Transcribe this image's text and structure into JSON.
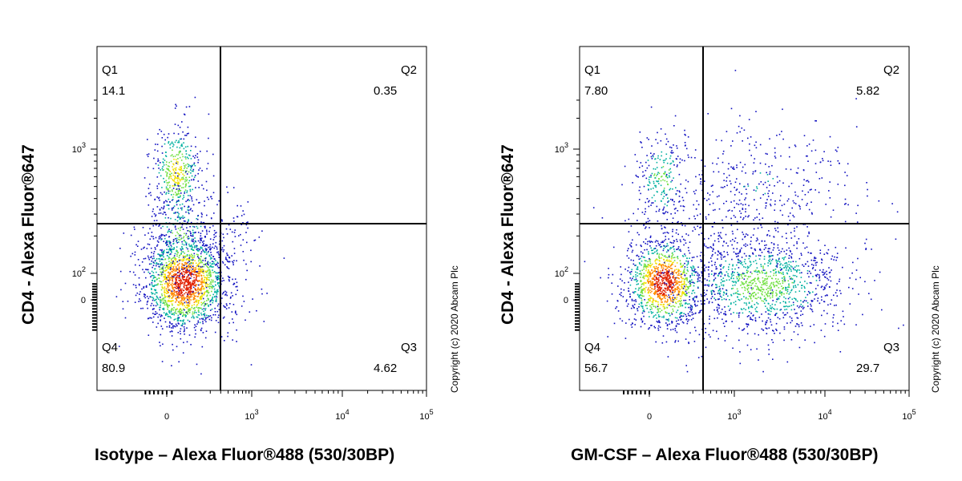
{
  "chart_data": [
    {
      "type": "scatter",
      "subtype": "flow-cytometry-density-dot-plot",
      "xlabel": "Isotype – Alexa Fluor®488 (530/30BP)",
      "ylabel": "CD4 - Alexa Fluor®647",
      "x_scale": "biexponential",
      "y_scale": "biexponential",
      "x_ticks": [
        "0",
        "10^3",
        "10^4",
        "10^5"
      ],
      "y_ticks": [
        "0",
        "10^2",
        "10^3"
      ],
      "x_gate": 500,
      "y_gate": 300,
      "quadrants": [
        {
          "name": "Q1",
          "percent": "14.1"
        },
        {
          "name": "Q2",
          "percent": "0.35"
        },
        {
          "name": "Q3",
          "percent": "4.62"
        },
        {
          "name": "Q4",
          "percent": "80.9"
        }
      ],
      "copyright": "Copyright (c) 2020 Abcam Plc"
    },
    {
      "type": "scatter",
      "subtype": "flow-cytometry-density-dot-plot",
      "xlabel": "GM-CSF – Alexa Fluor®488 (530/30BP)",
      "ylabel": "CD4 - Alexa Fluor®647",
      "x_scale": "biexponential",
      "y_scale": "biexponential",
      "x_ticks": [
        "0",
        "10^3",
        "10^4",
        "10^5"
      ],
      "y_ticks": [
        "0",
        "10^2",
        "10^3"
      ],
      "x_gate": 500,
      "y_gate": 300,
      "quadrants": [
        {
          "name": "Q1",
          "percent": "7.80"
        },
        {
          "name": "Q2",
          "percent": "5.82"
        },
        {
          "name": "Q3",
          "percent": "29.7"
        },
        {
          "name": "Q4",
          "percent": "56.7"
        }
      ],
      "copyright": "Copyright (c) 2020 Abcam Plc"
    }
  ],
  "colors": {
    "density_low": "#1010c0",
    "density_mid": "#00b0a0",
    "density_high": "#f0e000",
    "density_peak": "#e02000",
    "gate_line": "#000000"
  }
}
